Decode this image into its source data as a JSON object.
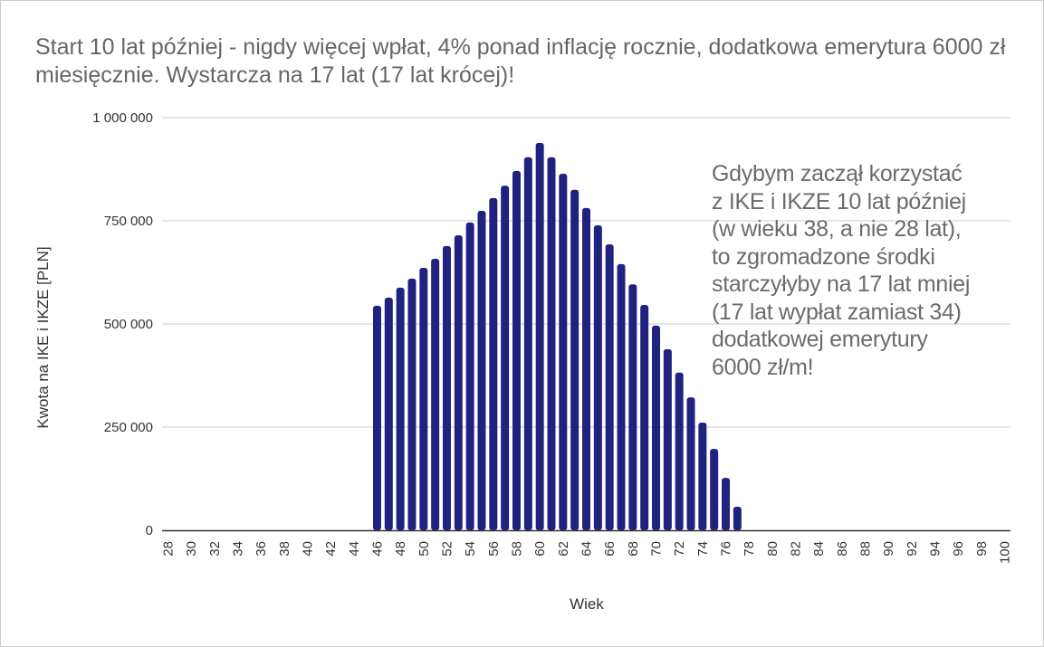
{
  "chart_data": {
    "type": "bar",
    "title": "Start 10 lat później - nigdy więcej wpłat, 4% ponad inflację rocznie, dodatkowa emerytura 6000 zł miesięcznie. Wystarcza na 17 lat (17 lat krócej)!",
    "xlabel": "Wiek",
    "ylabel": "Kwota na IKE i IKZE [PLN]",
    "ylim": [
      0,
      1000000
    ],
    "yticks": [
      {
        "v": 0,
        "label": "0"
      },
      {
        "v": 250000,
        "label": "250 000"
      },
      {
        "v": 500000,
        "label": "500 000"
      },
      {
        "v": 750000,
        "label": "750 000"
      },
      {
        "v": 1000000,
        "label": "1 000 000"
      }
    ],
    "x_start": 28,
    "x_end": 100,
    "x_tick_step": 2,
    "values_by_age": {
      "46": 544000,
      "47": 564000,
      "48": 588000,
      "49": 610000,
      "50": 636000,
      "51": 658000,
      "52": 689000,
      "53": 715000,
      "54": 746000,
      "55": 774000,
      "56": 805000,
      "57": 835000,
      "58": 871000,
      "59": 904000,
      "60": 939000,
      "61": 904000,
      "62": 864000,
      "63": 825000,
      "64": 781000,
      "65": 739000,
      "66": 693000,
      "67": 645000,
      "68": 596000,
      "69": 546000,
      "70": 496000,
      "71": 439000,
      "72": 382000,
      "73": 322000,
      "74": 261000,
      "75": 197000,
      "76": 127000,
      "77": 57000
    },
    "bar_color": "#1f237f",
    "grid": true,
    "legend": "none",
    "annotation": "Gdybym zaczął korzystać\nz IKE i IKZE 10 lat później\n(w wieku 38, a nie 28 lat),\nto zgromadzone środki\nstarczyłyby na 17 lat mniej\n(17 lat wypłat zamiast 34)\ndodatkowej emerytury\n6000 zł/m!"
  }
}
